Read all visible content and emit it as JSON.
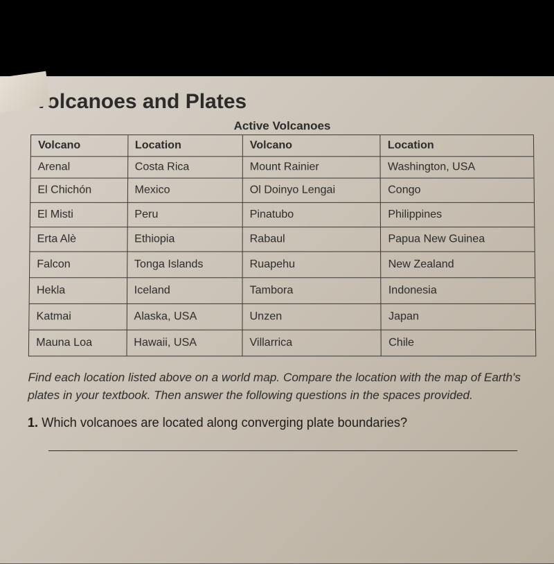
{
  "title": "Volcanoes and Plates",
  "table": {
    "caption": "Active Volcanoes",
    "headers": {
      "col1": "Volcano",
      "col2": "Location",
      "col3": "Volcano",
      "col4": "Location"
    },
    "rows": [
      {
        "v1": "Arenal",
        "l1": "Costa Rica",
        "v2": "Mount Rainier",
        "l2": "Washington, USA"
      },
      {
        "v1": "El Chichón",
        "l1": "Mexico",
        "v2": "Ol Doinyo Lengai",
        "l2": "Congo"
      },
      {
        "v1": "El Misti",
        "l1": "Peru",
        "v2": "Pinatubo",
        "l2": "Philippines"
      },
      {
        "v1": "Erta Alè",
        "l1": "Ethiopia",
        "v2": "Rabaul",
        "l2": "Papua New Guinea"
      },
      {
        "v1": "Falcon",
        "l1": "Tonga Islands",
        "v2": "Ruapehu",
        "l2": "New Zealand"
      },
      {
        "v1": "Hekla",
        "l1": "Iceland",
        "v2": "Tambora",
        "l2": "Indonesia"
      },
      {
        "v1": "Katmai",
        "l1": "Alaska, USA",
        "v2": "Unzen",
        "l2": "Japan"
      },
      {
        "v1": "Mauna Loa",
        "l1": "Hawaii, USA",
        "v2": "Villarrica",
        "l2": "Chile"
      }
    ],
    "column_widths_pct": [
      22,
      26,
      26,
      26
    ],
    "border_color": "#3a3832",
    "text_color": "#2a2a28",
    "header_fontsize": 16,
    "cell_fontsize": 16
  },
  "instructions": "Find each location listed above on a world map. Compare the location with the map of Earth's plates in your textbook. Then answer the following questions in the spaces provided.",
  "question": {
    "number": "1.",
    "text": "Which volcanoes are located along converging plate boundaries?"
  },
  "page_background_gradient": [
    "#d8d2ca",
    "#ccc4b8",
    "#b8ae9f"
  ],
  "outer_background": "#000000"
}
